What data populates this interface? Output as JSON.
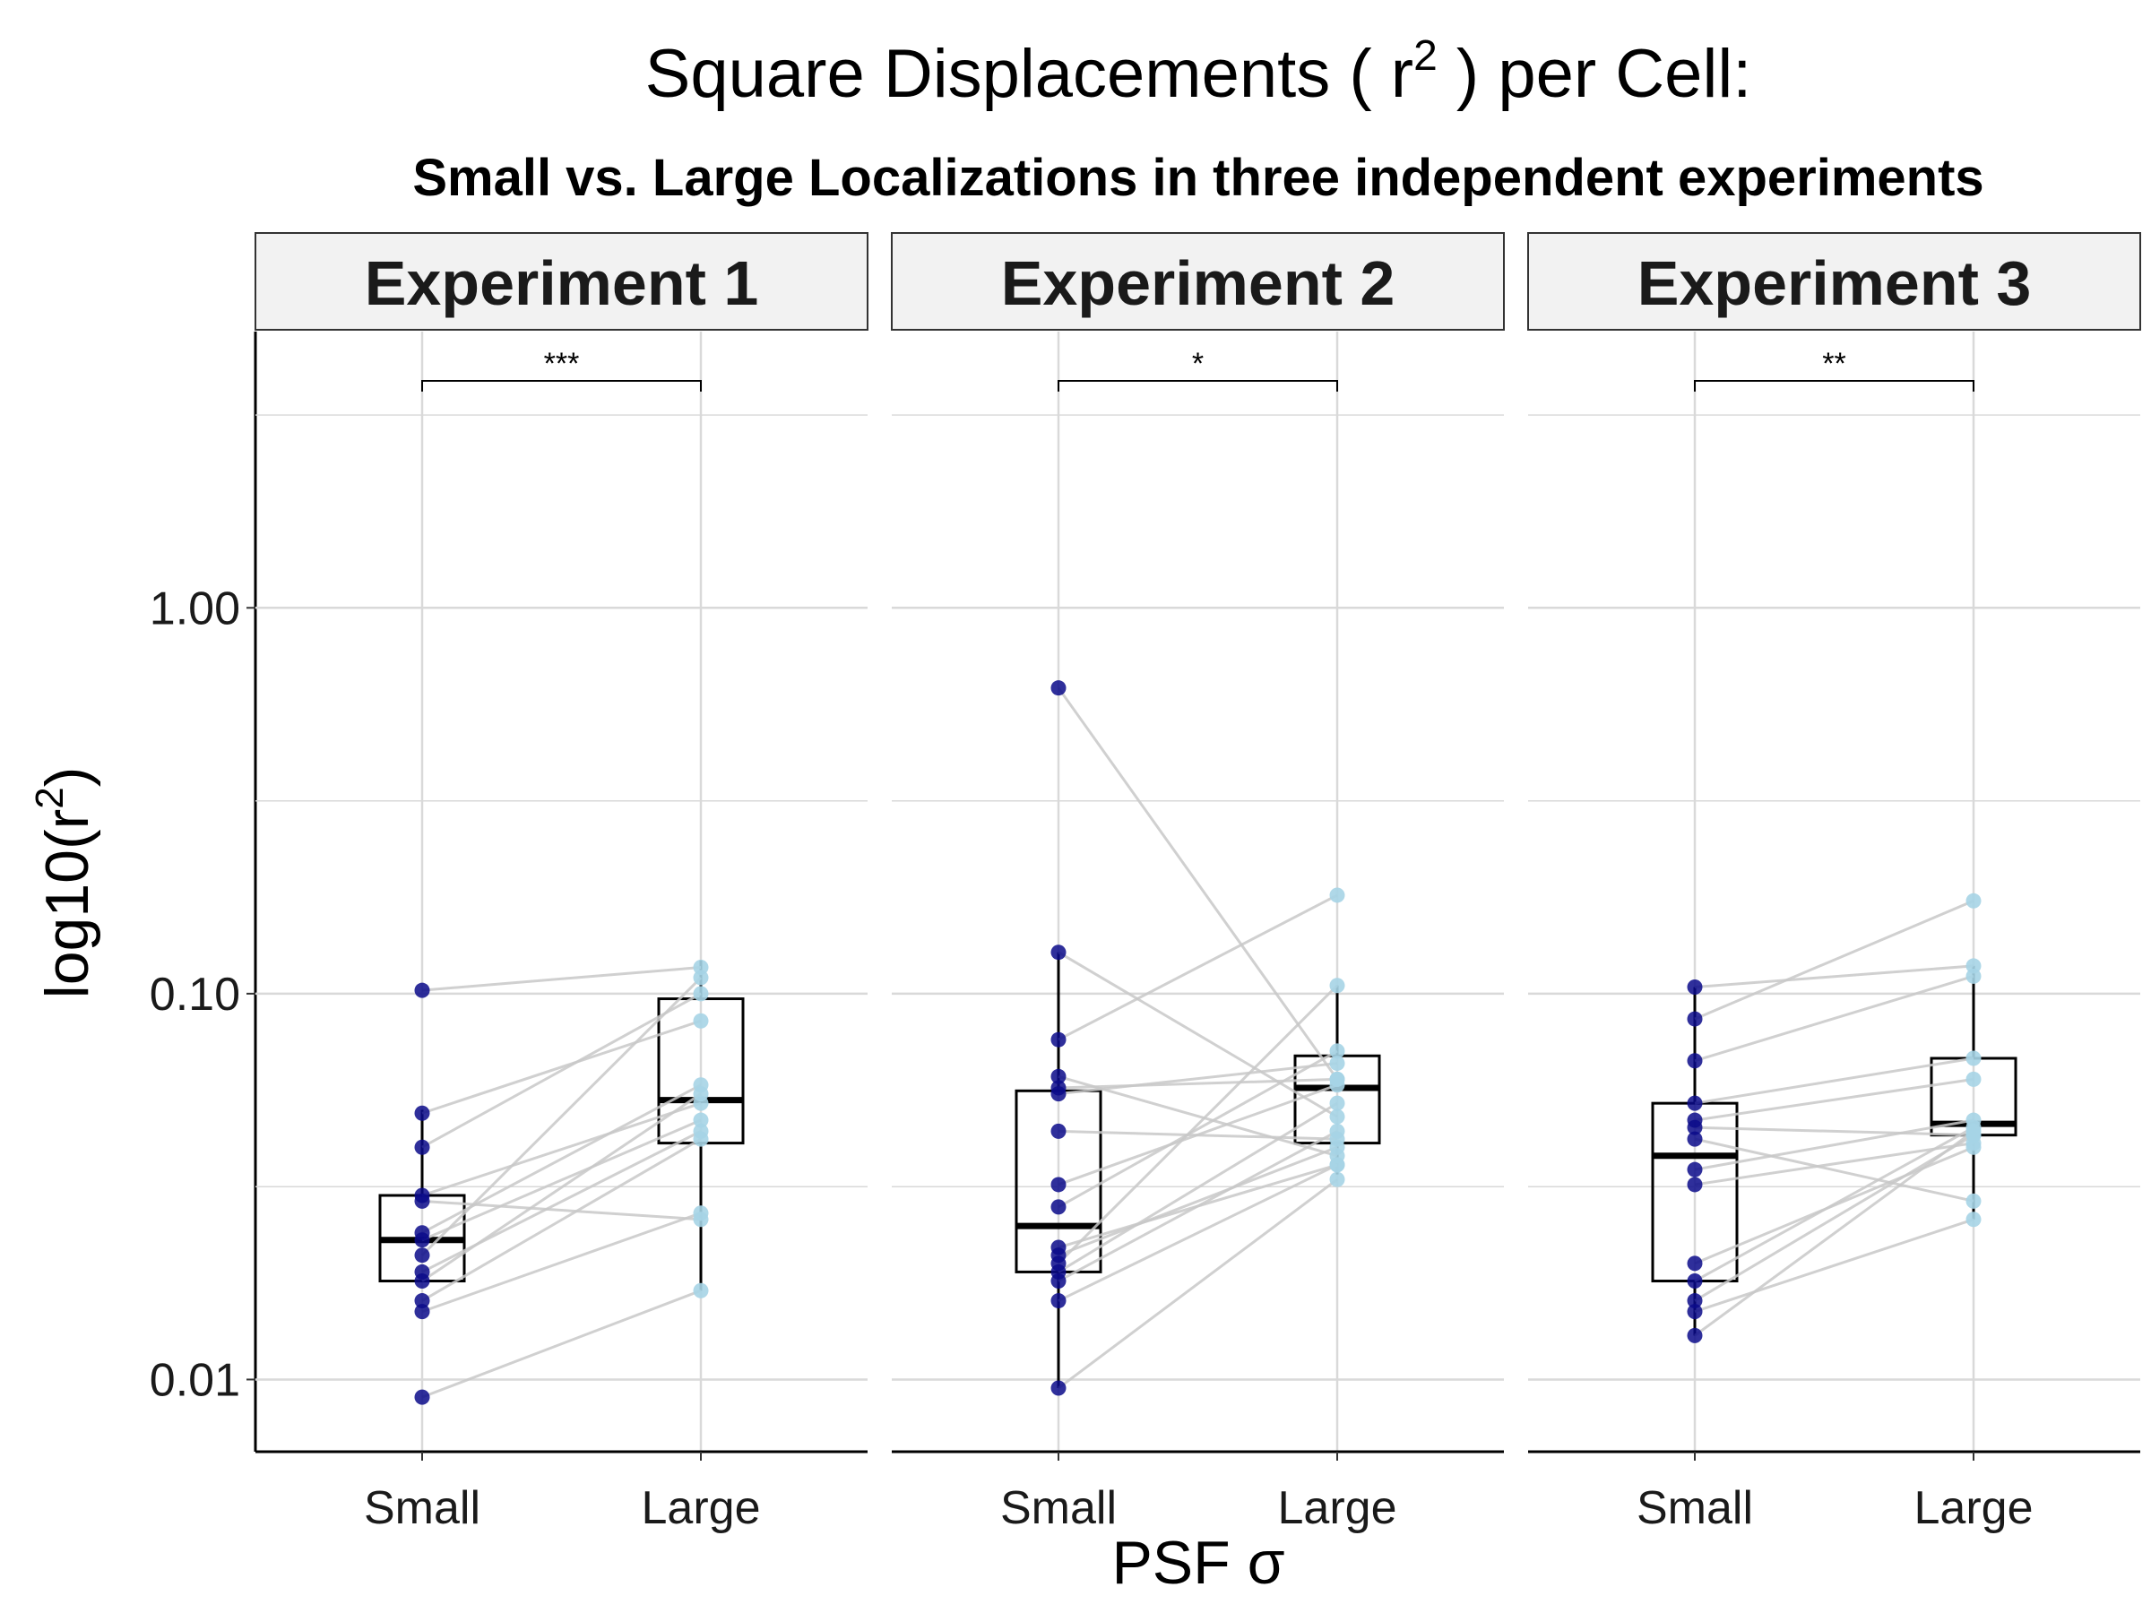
{
  "colors": {
    "small": "#0b0b8a",
    "large": "#a6d4e6",
    "pair_line": "#c8c8c8",
    "grid": "#d9d9d9",
    "strip_fill": "#f2f2f2"
  },
  "chart_data": {
    "type": "box",
    "title": "Square Displacements ( r",
    "title_sup": "2",
    "title_suffix": " ) per Cell:",
    "subtitle": "Small vs. Large Localizations in three independent experiments",
    "xlabel": "PSF σ",
    "ylabel": "log10(r",
    "ylabel_sup": "2",
    "ylabel_suffix": ")",
    "y_scale": "log10",
    "ylim": [
      0.0065,
      5.2
    ],
    "y_ticks": [
      0.01,
      0.1,
      1.0
    ],
    "y_tick_labels": [
      "0.01",
      "0.10",
      "1.00"
    ],
    "categories": [
      "Small",
      "Large"
    ],
    "grid": true,
    "panels": [
      {
        "label": "Experiment 1",
        "significance": "***",
        "box_small": {
          "lower": 0.018,
          "q1": 0.018,
          "median": 0.023,
          "q3": 0.03,
          "upper": 0.05
        },
        "box_large": {
          "lower": 0.017,
          "q1": 0.041,
          "median": 0.053,
          "q3": 0.097,
          "upper": 0.122
        },
        "pairs": [
          [
            0.102,
            0.117
          ],
          [
            0.049,
            0.085
          ],
          [
            0.04,
            0.1
          ],
          [
            0.03,
            0.052
          ],
          [
            0.029,
            0.026
          ],
          [
            0.024,
            0.058
          ],
          [
            0.023,
            0.047
          ],
          [
            0.021,
            0.11
          ],
          [
            0.019,
            0.044
          ],
          [
            0.018,
            0.055
          ],
          [
            0.016,
            0.042
          ],
          [
            0.015,
            0.027
          ],
          [
            0.009,
            0.017
          ]
        ]
      },
      {
        "label": "Experiment 2",
        "significance": "*",
        "box_small": {
          "lower": 0.0095,
          "q1": 0.019,
          "median": 0.025,
          "q3": 0.056,
          "upper": 0.128
        },
        "box_large": {
          "lower": 0.034,
          "q1": 0.041,
          "median": 0.057,
          "q3": 0.069,
          "upper": 0.105
        },
        "pairs": [
          [
            0.62,
            0.06
          ],
          [
            0.128,
            0.048
          ],
          [
            0.076,
            0.18
          ],
          [
            0.061,
            0.038
          ],
          [
            0.057,
            0.06
          ],
          [
            0.055,
            0.066
          ],
          [
            0.044,
            0.042
          ],
          [
            0.032,
            0.058
          ],
          [
            0.028,
            0.071
          ],
          [
            0.022,
            0.036
          ],
          [
            0.021,
            0.04
          ],
          [
            0.02,
            0.105
          ],
          [
            0.019,
            0.052
          ],
          [
            0.018,
            0.044
          ],
          [
            0.016,
            0.036
          ],
          [
            0.0095,
            0.033
          ]
        ]
      },
      {
        "label": "Experiment 3",
        "significance": "**",
        "box_small": {
          "lower": 0.013,
          "q1": 0.018,
          "median": 0.038,
          "q3": 0.052,
          "upper": 0.104
        },
        "box_large": {
          "lower": 0.026,
          "q1": 0.043,
          "median": 0.046,
          "q3": 0.068,
          "upper": 0.118
        },
        "pairs": [
          [
            0.104,
            0.118
          ],
          [
            0.086,
            0.174
          ],
          [
            0.067,
            0.111
          ],
          [
            0.052,
            0.068
          ],
          [
            0.047,
            0.06
          ],
          [
            0.045,
            0.043
          ],
          [
            0.042,
            0.029
          ],
          [
            0.035,
            0.047
          ],
          [
            0.032,
            0.041
          ],
          [
            0.02,
            0.04
          ],
          [
            0.018,
            0.045
          ],
          [
            0.016,
            0.043
          ],
          [
            0.015,
            0.026
          ],
          [
            0.013,
            0.044
          ]
        ]
      }
    ]
  }
}
